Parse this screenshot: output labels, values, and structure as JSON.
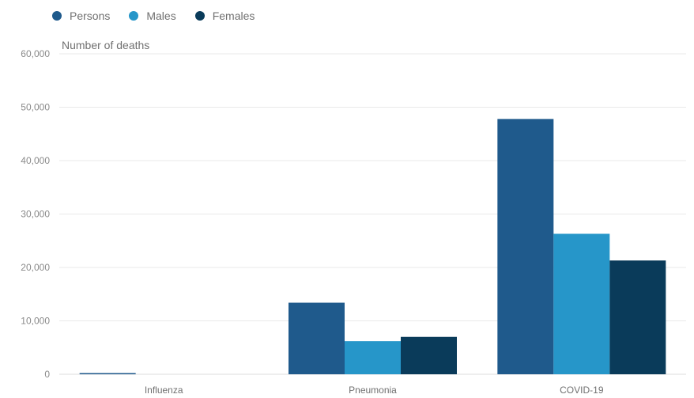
{
  "chart_data": {
    "type": "bar",
    "ylabel": "Number of deaths",
    "categories": [
      "Influenza",
      "Pneumonia",
      "COVID-19"
    ],
    "series": [
      {
        "name": "Persons",
        "color": "#1f5a8c",
        "values": [
          200,
          13400,
          47800
        ]
      },
      {
        "name": "Males",
        "color": "#2696c9",
        "values": [
          0,
          6200,
          26300
        ]
      },
      {
        "name": "Females",
        "color": "#0a3b5a",
        "values": [
          0,
          7000,
          21300
        ]
      }
    ],
    "ylim": [
      0,
      60000
    ],
    "yticks": [
      {
        "value": 0,
        "label": "0"
      },
      {
        "value": 10000,
        "label": "10,000"
      },
      {
        "value": 20000,
        "label": "20,000"
      },
      {
        "value": 30000,
        "label": "30,000"
      },
      {
        "value": 40000,
        "label": "40,000"
      },
      {
        "value": 50000,
        "label": "50,000"
      },
      {
        "value": 60000,
        "label": "60,000"
      }
    ],
    "grid": true,
    "legend_position": "top-left"
  }
}
